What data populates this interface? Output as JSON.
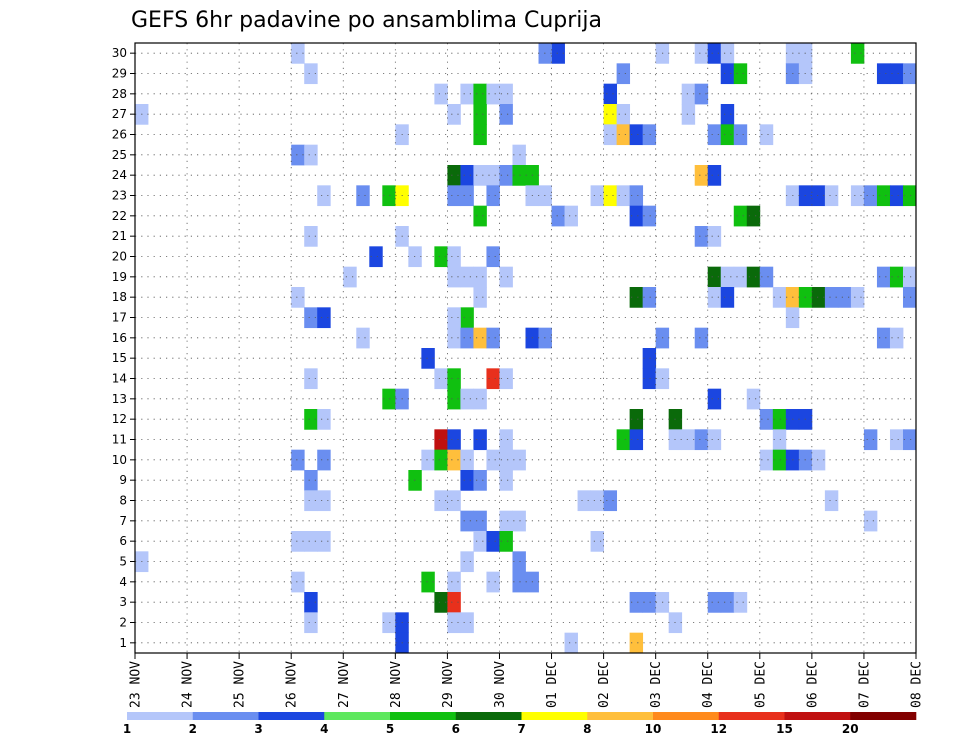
{
  "chart_data": {
    "type": "heatmap",
    "title": "GEFS 6hr padavine po ansamblima Cuprija",
    "xlabel": "",
    "ylabel": "",
    "x_ticks": [
      "23 NOV",
      "24 NOV",
      "25 NOV",
      "26 NOV",
      "27 NOV",
      "28 NOV",
      "29 NOV",
      "30 NOV",
      "01 DEC",
      "02 DEC",
      "03 DEC",
      "04 DEC",
      "05 DEC",
      "06 DEC",
      "07 DEC",
      "08 DEC"
    ],
    "y_ticks": [
      1,
      2,
      3,
      4,
      5,
      6,
      7,
      8,
      9,
      10,
      11,
      12,
      13,
      14,
      15,
      16,
      17,
      18,
      19,
      20,
      21,
      22,
      23,
      24,
      25,
      26,
      27,
      28,
      29,
      30
    ],
    "x_range": [
      0,
      60
    ],
    "y_range": [
      0,
      30
    ],
    "grid": true,
    "colorbar": {
      "labels": [
        "1",
        "2",
        "3",
        "4",
        "5",
        "6",
        "7",
        "8",
        "10",
        "12",
        "15",
        "20"
      ],
      "colors": [
        "#b4c6fa",
        "#6a8ef0",
        "#1b46e0",
        "#5ee85e",
        "#10c010",
        "#0a6a0a",
        "#ffff00",
        "#ffbf3c",
        "#ff8a1c",
        "#e8301c",
        "#c01010",
        "#820000"
      ]
    },
    "cells": [
      [
        12,
        30,
        1
      ],
      [
        32,
        30,
        3
      ],
      [
        31,
        30,
        2
      ],
      [
        40,
        30,
        1
      ],
      [
        43,
        30,
        1
      ],
      [
        44,
        30,
        3
      ],
      [
        45,
        30,
        1
      ],
      [
        50,
        30,
        1
      ],
      [
        51,
        30,
        1
      ],
      [
        55,
        30,
        5
      ],
      [
        13,
        29,
        1
      ],
      [
        37,
        29,
        2
      ],
      [
        45,
        29,
        3
      ],
      [
        46,
        29,
        5
      ],
      [
        50,
        29,
        2
      ],
      [
        51,
        29,
        1
      ],
      [
        57,
        29,
        3
      ],
      [
        58,
        29,
        3
      ],
      [
        59,
        29,
        2
      ],
      [
        23,
        28,
        1
      ],
      [
        25,
        28,
        1
      ],
      [
        26,
        28,
        5
      ],
      [
        27,
        28,
        1
      ],
      [
        28,
        28,
        1
      ],
      [
        36,
        28,
        3
      ],
      [
        42,
        28,
        1
      ],
      [
        43,
        28,
        2
      ],
      [
        0,
        27,
        1
      ],
      [
        24,
        27,
        1
      ],
      [
        26,
        27,
        5
      ],
      [
        28,
        27,
        2
      ],
      [
        36,
        27,
        7
      ],
      [
        37,
        27,
        1
      ],
      [
        42,
        27,
        1
      ],
      [
        45,
        27,
        3
      ],
      [
        20,
        26,
        1
      ],
      [
        26,
        26,
        5
      ],
      [
        36,
        26,
        1
      ],
      [
        37,
        26,
        8
      ],
      [
        38,
        26,
        3
      ],
      [
        39,
        26,
        2
      ],
      [
        44,
        26,
        2
      ],
      [
        45,
        26,
        5
      ],
      [
        46,
        26,
        2
      ],
      [
        48,
        26,
        1
      ],
      [
        12,
        25,
        2
      ],
      [
        13,
        25,
        1
      ],
      [
        29,
        25,
        1
      ],
      [
        24,
        24,
        6
      ],
      [
        25,
        24,
        3
      ],
      [
        26,
        24,
        1
      ],
      [
        27,
        24,
        1
      ],
      [
        28,
        24,
        2
      ],
      [
        29,
        24,
        5
      ],
      [
        30,
        24,
        5
      ],
      [
        43,
        24,
        8
      ],
      [
        44,
        24,
        3
      ],
      [
        14,
        23,
        1
      ],
      [
        17,
        23,
        2
      ],
      [
        19,
        23,
        5
      ],
      [
        20,
        23,
        7
      ],
      [
        24,
        23,
        2
      ],
      [
        25,
        23,
        2
      ],
      [
        27,
        23,
        2
      ],
      [
        30,
        23,
        1
      ],
      [
        31,
        23,
        1
      ],
      [
        35,
        23,
        1
      ],
      [
        36,
        23,
        7
      ],
      [
        37,
        23,
        1
      ],
      [
        38,
        23,
        2
      ],
      [
        50,
        23,
        1
      ],
      [
        51,
        23,
        3
      ],
      [
        52,
        23,
        3
      ],
      [
        53,
        23,
        1
      ],
      [
        55,
        23,
        1
      ],
      [
        56,
        23,
        2
      ],
      [
        57,
        23,
        5
      ],
      [
        58,
        23,
        3
      ],
      [
        59,
        23,
        5
      ],
      [
        26,
        22,
        5
      ],
      [
        32,
        22,
        2
      ],
      [
        33,
        22,
        1
      ],
      [
        38,
        22,
        3
      ],
      [
        39,
        22,
        2
      ],
      [
        46,
        22,
        5
      ],
      [
        47,
        22,
        6
      ],
      [
        13,
        21,
        1
      ],
      [
        20,
        21,
        1
      ],
      [
        43,
        21,
        2
      ],
      [
        44,
        21,
        1
      ],
      [
        18,
        20,
        3
      ],
      [
        21,
        20,
        1
      ],
      [
        23,
        20,
        5
      ],
      [
        24,
        20,
        1
      ],
      [
        27,
        20,
        2
      ],
      [
        16,
        19,
        1
      ],
      [
        24,
        19,
        1
      ],
      [
        25,
        19,
        1
      ],
      [
        26,
        19,
        1
      ],
      [
        28,
        19,
        1
      ],
      [
        44,
        19,
        6
      ],
      [
        45,
        19,
        1
      ],
      [
        46,
        19,
        1
      ],
      [
        47,
        19,
        6
      ],
      [
        48,
        19,
        2
      ],
      [
        57,
        19,
        2
      ],
      [
        58,
        19,
        5
      ],
      [
        59,
        19,
        1
      ],
      [
        12,
        18,
        1
      ],
      [
        26,
        18,
        1
      ],
      [
        38,
        18,
        6
      ],
      [
        39,
        18,
        2
      ],
      [
        44,
        18,
        1
      ],
      [
        45,
        18,
        3
      ],
      [
        49,
        18,
        1
      ],
      [
        50,
        18,
        8
      ],
      [
        51,
        18,
        5
      ],
      [
        52,
        18,
        6
      ],
      [
        53,
        18,
        2
      ],
      [
        54,
        18,
        2
      ],
      [
        55,
        18,
        1
      ],
      [
        59,
        18,
        2
      ],
      [
        13,
        17,
        2
      ],
      [
        14,
        17,
        3
      ],
      [
        25,
        17,
        5
      ],
      [
        24,
        17,
        1
      ],
      [
        17,
        16,
        1
      ],
      [
        24,
        16,
        1
      ],
      [
        25,
        16,
        2
      ],
      [
        26,
        16,
        8
      ],
      [
        27,
        16,
        2
      ],
      [
        30,
        16,
        3
      ],
      [
        31,
        16,
        2
      ],
      [
        40,
        16,
        2
      ],
      [
        43,
        16,
        2
      ],
      [
        57,
        16,
        2
      ],
      [
        58,
        16,
        1
      ],
      [
        50,
        17,
        1
      ],
      [
        22,
        15,
        3
      ],
      [
        39,
        15,
        3
      ],
      [
        23,
        14,
        1
      ],
      [
        24,
        14,
        5
      ],
      [
        27,
        14,
        10
      ],
      [
        28,
        14,
        1
      ],
      [
        13,
        14,
        1
      ],
      [
        39,
        14,
        3
      ],
      [
        40,
        14,
        1
      ],
      [
        19,
        13,
        5
      ],
      [
        20,
        13,
        2
      ],
      [
        24,
        13,
        5
      ],
      [
        25,
        13,
        1
      ],
      [
        26,
        13,
        1
      ],
      [
        44,
        13,
        3
      ],
      [
        47,
        13,
        1
      ],
      [
        13,
        12,
        5
      ],
      [
        14,
        12,
        1
      ],
      [
        38,
        12,
        6
      ],
      [
        41,
        12,
        6
      ],
      [
        48,
        12,
        2
      ],
      [
        49,
        12,
        5
      ],
      [
        50,
        12,
        3
      ],
      [
        51,
        12,
        3
      ],
      [
        23,
        11,
        11
      ],
      [
        24,
        11,
        3
      ],
      [
        26,
        11,
        3
      ],
      [
        28,
        11,
        1
      ],
      [
        37,
        11,
        5
      ],
      [
        38,
        11,
        3
      ],
      [
        41,
        11,
        1
      ],
      [
        42,
        11,
        1
      ],
      [
        43,
        11,
        2
      ],
      [
        44,
        11,
        1
      ],
      [
        49,
        11,
        1
      ],
      [
        56,
        11,
        2
      ],
      [
        58,
        11,
        1
      ],
      [
        59,
        11,
        2
      ],
      [
        12,
        10,
        2
      ],
      [
        14,
        10,
        2
      ],
      [
        22,
        10,
        1
      ],
      [
        23,
        10,
        5
      ],
      [
        24,
        10,
        8
      ],
      [
        25,
        10,
        1
      ],
      [
        27,
        10,
        1
      ],
      [
        28,
        10,
        1
      ],
      [
        29,
        10,
        1
      ],
      [
        48,
        10,
        1
      ],
      [
        49,
        10,
        5
      ],
      [
        50,
        10,
        3
      ],
      [
        51,
        10,
        2
      ],
      [
        52,
        10,
        1
      ],
      [
        13,
        9,
        2
      ],
      [
        21,
        9,
        5
      ],
      [
        25,
        9,
        3
      ],
      [
        26,
        9,
        2
      ],
      [
        28,
        9,
        1
      ],
      [
        13,
        8,
        1
      ],
      [
        14,
        8,
        1
      ],
      [
        23,
        8,
        1
      ],
      [
        24,
        8,
        1
      ],
      [
        34,
        8,
        1
      ],
      [
        35,
        8,
        1
      ],
      [
        36,
        8,
        2
      ],
      [
        53,
        8,
        1
      ],
      [
        25,
        7,
        2
      ],
      [
        26,
        7,
        2
      ],
      [
        28,
        7,
        1
      ],
      [
        29,
        7,
        1
      ],
      [
        56,
        7,
        1
      ],
      [
        12,
        6,
        1
      ],
      [
        13,
        6,
        1
      ],
      [
        14,
        6,
        1
      ],
      [
        26,
        6,
        1
      ],
      [
        27,
        6,
        3
      ],
      [
        28,
        6,
        5
      ],
      [
        35,
        6,
        1
      ],
      [
        0,
        5,
        1
      ],
      [
        25,
        5,
        1
      ],
      [
        29,
        5,
        2
      ],
      [
        12,
        4,
        1
      ],
      [
        22,
        4,
        5
      ],
      [
        24,
        4,
        1
      ],
      [
        27,
        4,
        1
      ],
      [
        29,
        4,
        2
      ],
      [
        30,
        4,
        2
      ],
      [
        13,
        3,
        3
      ],
      [
        23,
        3,
        6
      ],
      [
        24,
        3,
        10
      ],
      [
        38,
        3,
        2
      ],
      [
        39,
        3,
        2
      ],
      [
        40,
        3,
        1
      ],
      [
        44,
        3,
        2
      ],
      [
        45,
        3,
        2
      ],
      [
        46,
        3,
        1
      ],
      [
        13,
        2,
        1
      ],
      [
        19,
        2,
        1
      ],
      [
        20,
        2,
        3
      ],
      [
        24,
        2,
        1
      ],
      [
        25,
        2,
        1
      ],
      [
        41,
        2,
        1
      ],
      [
        20,
        1,
        3
      ],
      [
        33,
        1,
        1
      ],
      [
        38,
        1,
        8
      ]
    ]
  }
}
